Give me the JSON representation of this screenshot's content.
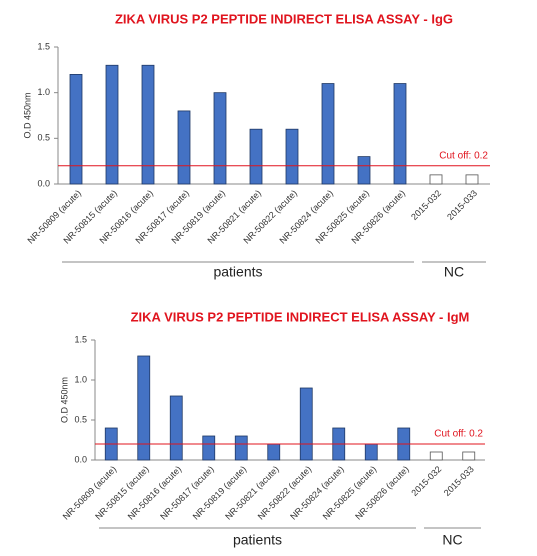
{
  "chart_data": [
    {
      "type": "bar",
      "title": "ZIKA VIRUS P2 PEPTIDE INDIRECT ELISA ASSAY - IgG",
      "y_label": "O.D 450nm",
      "categories": [
        "NR-50809 (acute)",
        "NR-50815 (acute)",
        "NR-50816 (acute)",
        "NR-50817 (acute)",
        "NR-50819 (acute)",
        "NR-50821 (acute)",
        "NR-50822 (acute)",
        "NR-50824 (acute)",
        "NR-50825 (acute)",
        "NR-50826 (acute)",
        "2015-032",
        "2015-033"
      ],
      "values": [
        1.2,
        1.3,
        1.3,
        0.8,
        1.0,
        0.6,
        0.6,
        1.1,
        0.3,
        1.1,
        0.1,
        0.1
      ],
      "colors": [
        "#4472c4",
        "#4472c4",
        "#4472c4",
        "#4472c4",
        "#4472c4",
        "#4472c4",
        "#4472c4",
        "#4472c4",
        "#4472c4",
        "#4472c4",
        "#ffffff",
        "#ffffff"
      ],
      "ylim": [
        0,
        1.5
      ],
      "yticks": [
        {
          "value": 0,
          "label": "0.0"
        },
        0.5,
        {
          "value": 1,
          "label": "1.0"
        },
        1.5
      ],
      "cutoff": 0.2,
      "cutoff_label": "Cut off: 0.2",
      "groups": [
        {
          "label": "patients",
          "from": "NR-50809 (acute)",
          "to": "NR-50826 (acute)"
        },
        {
          "label": "NC",
          "from": "2015-032",
          "to": "2015-033"
        }
      ]
    },
    {
      "type": "bar",
      "title": "ZIKA VIRUS P2 PEPTIDE INDIRECT ELISA ASSAY - IgM",
      "y_label": "O.D 450nm",
      "categories": [
        "NR-50809 (acute)",
        "NR-50815 (acute)",
        "NR-50816 (acute)",
        "NR-50817 (acute)",
        "NR-50819 (acute)",
        "NR-50821 (acute)",
        "NR-50822 (acute)",
        "NR-50824 (acute)",
        "NR-50825 (acute)",
        "NR-50826 (acute)",
        "2015-032",
        "2015-033"
      ],
      "values": [
        0.4,
        1.3,
        0.8,
        0.3,
        0.3,
        0.2,
        0.9,
        0.4,
        0.2,
        0.4,
        0.1,
        0.1
      ],
      "colors": [
        "#4472c4",
        "#4472c4",
        "#4472c4",
        "#4472c4",
        "#4472c4",
        "#4472c4",
        "#4472c4",
        "#4472c4",
        "#4472c4",
        "#4472c4",
        "#ffffff",
        "#ffffff"
      ],
      "ylim": [
        0,
        1.5
      ],
      "yticks": [
        {
          "value": 0,
          "label": "0.0"
        },
        0.5,
        {
          "value": 1,
          "label": "1.0"
        },
        1.5
      ],
      "cutoff": 0.2,
      "cutoff_label": "Cut off: 0.2",
      "groups": [
        {
          "label": "patients",
          "from": "NR-50809 (acute)",
          "to": "NR-50826 (acute)"
        },
        {
          "label": "NC",
          "from": "2015-032",
          "to": "2015-033"
        }
      ]
    }
  ]
}
